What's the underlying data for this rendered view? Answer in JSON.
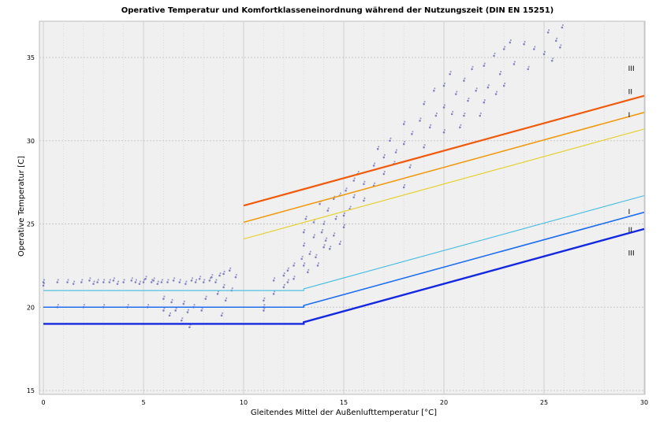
{
  "chart_data": {
    "type": "scatter",
    "title": "Operative Temperatur und Komfortklasseneinordnung während der Nutzungszeit (DIN EN 15251)",
    "xlabel": "Gleitendes Mittel der Außenlufttemperatur [°C]",
    "ylabel": "Operative Temperatur [C]",
    "xlim": [
      0,
      30
    ],
    "ylim": [
      15,
      37
    ],
    "xticks": [
      "0",
      "5",
      "10",
      "15",
      "20",
      "25",
      "30"
    ],
    "yticks": [
      "15",
      "20",
      "25",
      "30",
      "35"
    ],
    "grid": true,
    "lines": [
      {
        "name": "Upper III",
        "label": "III",
        "color": "#f05a0a",
        "width": 2.2,
        "points": [
          [
            10,
            26.1
          ],
          [
            30,
            32.7
          ]
        ]
      },
      {
        "name": "Upper II",
        "label": "II",
        "color": "#f09a10",
        "width": 1.6,
        "points": [
          [
            10,
            25.1
          ],
          [
            30,
            31.7
          ]
        ]
      },
      {
        "name": "Upper I",
        "label": "I",
        "color": "#e6d030",
        "width": 1.2,
        "points": [
          [
            10,
            24.1
          ],
          [
            30,
            30.7
          ]
        ]
      },
      {
        "name": "Lower I",
        "label": "I",
        "color": "#50c0e0",
        "width": 1.2,
        "points": [
          [
            0,
            21
          ],
          [
            13,
            21
          ],
          [
            13,
            21.1
          ],
          [
            30,
            26.7
          ]
        ]
      },
      {
        "name": "Lower II",
        "label": "II",
        "color": "#1e6ef0",
        "width": 1.6,
        "points": [
          [
            0,
            20
          ],
          [
            13,
            20
          ],
          [
            13,
            20.1
          ],
          [
            30,
            25.7
          ]
        ]
      },
      {
        "name": "Lower III",
        "label": "III",
        "color": "#1428e0",
        "width": 2.4,
        "points": [
          [
            0,
            19
          ],
          [
            13,
            19
          ],
          [
            13,
            19.1
          ],
          [
            30,
            24.7
          ]
        ]
      }
    ],
    "class_labels": [
      {
        "text": "III",
        "x": 29.2,
        "y": 34.2
      },
      {
        "text": "II",
        "x": 29.2,
        "y": 32.8
      },
      {
        "text": "I",
        "x": 29.2,
        "y": 31.4
      },
      {
        "text": "I",
        "x": 29.2,
        "y": 25.6
      },
      {
        "text": "II",
        "x": 29.2,
        "y": 24.5
      },
      {
        "text": "III",
        "x": 29.2,
        "y": 23.1
      }
    ],
    "series": [
      {
        "name": "Operative Temperatur",
        "color": "#3a3aa0",
        "points": [
          [
            0,
            21.5
          ],
          [
            0,
            21.3
          ],
          [
            0.7,
            21.5
          ],
          [
            0.7,
            20
          ],
          [
            1.2,
            21.5
          ],
          [
            1.5,
            21.4
          ],
          [
            1.9,
            21.5
          ],
          [
            2,
            20
          ],
          [
            2.3,
            21.6
          ],
          [
            2.5,
            21.4
          ],
          [
            2.7,
            21.5
          ],
          [
            3,
            21.5
          ],
          [
            3,
            20
          ],
          [
            3.3,
            21.5
          ],
          [
            3.5,
            21.6
          ],
          [
            3.7,
            21.4
          ],
          [
            4,
            21.5
          ],
          [
            4.2,
            20
          ],
          [
            4.4,
            21.6
          ],
          [
            4.6,
            21.5
          ],
          [
            4.8,
            21.4
          ],
          [
            5,
            21.5
          ],
          [
            5.1,
            21.7
          ],
          [
            5.2,
            20
          ],
          [
            5.4,
            21.5
          ],
          [
            5.5,
            21.6
          ],
          [
            5.7,
            21.4
          ],
          [
            5.9,
            21.5
          ],
          [
            6,
            19.8
          ],
          [
            6,
            20.5
          ],
          [
            6.2,
            21.5
          ],
          [
            6.3,
            19.5
          ],
          [
            6.4,
            20.3
          ],
          [
            6.5,
            21.6
          ],
          [
            6.6,
            19.8
          ],
          [
            6.8,
            21.5
          ],
          [
            6.9,
            19.2
          ],
          [
            7,
            20.2
          ],
          [
            7.1,
            21.4
          ],
          [
            7.2,
            19.7
          ],
          [
            7.3,
            18.8
          ],
          [
            7.4,
            21.6
          ],
          [
            7.5,
            20
          ],
          [
            7.6,
            21.5
          ],
          [
            7.8,
            21.7
          ],
          [
            7.9,
            19.8
          ],
          [
            8,
            21.5
          ],
          [
            8.1,
            20.5
          ],
          [
            8.3,
            21.6
          ],
          [
            8.4,
            21.8
          ],
          [
            8.6,
            21.5
          ],
          [
            8.7,
            20.8
          ],
          [
            8.8,
            21.9
          ],
          [
            8.9,
            19.5
          ],
          [
            9,
            22
          ],
          [
            9,
            21.2
          ],
          [
            9.1,
            20.4
          ],
          [
            9.3,
            22.2
          ],
          [
            9.4,
            21
          ],
          [
            9.6,
            21.8
          ],
          [
            11,
            20.4
          ],
          [
            11,
            20
          ],
          [
            11,
            19.8
          ],
          [
            11.5,
            21.6
          ],
          [
            11.5,
            20.8
          ],
          [
            12,
            21.9
          ],
          [
            12,
            21.2
          ],
          [
            12.2,
            22.2
          ],
          [
            12.2,
            21.5
          ],
          [
            12.5,
            22.5
          ],
          [
            12.5,
            21.7
          ],
          [
            12.9,
            22.9
          ],
          [
            13,
            23.7
          ],
          [
            13,
            22.5
          ],
          [
            13,
            24.5
          ],
          [
            13.1,
            25.3
          ],
          [
            13.2,
            22.1
          ],
          [
            13.3,
            23.2
          ],
          [
            13.5,
            24.2
          ],
          [
            13.5,
            25.1
          ],
          [
            13.6,
            23
          ],
          [
            13.7,
            22.5
          ],
          [
            13.8,
            26.2
          ],
          [
            13.9,
            24.5
          ],
          [
            14,
            25
          ],
          [
            14,
            23.6
          ],
          [
            14.1,
            24
          ],
          [
            14.2,
            25.8
          ],
          [
            14.3,
            23.5
          ],
          [
            14.5,
            26.5
          ],
          [
            14.5,
            24.3
          ],
          [
            14.6,
            25.3
          ],
          [
            14.8,
            26.7
          ],
          [
            14.8,
            23.8
          ],
          [
            15,
            25.5
          ],
          [
            15,
            24.8
          ],
          [
            15.1,
            27
          ],
          [
            15.3,
            25.9
          ],
          [
            15.5,
            27.6
          ],
          [
            15.5,
            26.6
          ],
          [
            15.7,
            28
          ],
          [
            16,
            26.4
          ],
          [
            16,
            27.4
          ],
          [
            16.5,
            27.3
          ],
          [
            16.5,
            28.5
          ],
          [
            16.7,
            29.5
          ],
          [
            17,
            28
          ],
          [
            17,
            29
          ],
          [
            17.3,
            30
          ],
          [
            17.5,
            28.6
          ],
          [
            17.6,
            29.3
          ],
          [
            18,
            27.2
          ],
          [
            18,
            29.8
          ],
          [
            18,
            31
          ],
          [
            18.3,
            28.4
          ],
          [
            18.4,
            30.4
          ],
          [
            18.8,
            31.2
          ],
          [
            19,
            29.6
          ],
          [
            19,
            32.2
          ],
          [
            19.3,
            30.8
          ],
          [
            19.5,
            33
          ],
          [
            19.6,
            31.5
          ],
          [
            20,
            30.5
          ],
          [
            20,
            32
          ],
          [
            20,
            33.3
          ],
          [
            20.3,
            34
          ],
          [
            20.4,
            31.6
          ],
          [
            20.6,
            32.8
          ],
          [
            20.8,
            30.8
          ],
          [
            21,
            33.6
          ],
          [
            21,
            31.5
          ],
          [
            21.2,
            32.4
          ],
          [
            21.4,
            34.3
          ],
          [
            21.6,
            33
          ],
          [
            21.8,
            31.5
          ],
          [
            22,
            32.3
          ],
          [
            22,
            34.5
          ],
          [
            22.2,
            33.2
          ],
          [
            22.5,
            35.1
          ],
          [
            22.6,
            32.8
          ],
          [
            22.8,
            34
          ],
          [
            23,
            35.5
          ],
          [
            23,
            33.3
          ],
          [
            23.3,
            35.9
          ],
          [
            23.5,
            34.6
          ],
          [
            24,
            35.8
          ],
          [
            24.2,
            34.3
          ],
          [
            24.5,
            35.5
          ],
          [
            25,
            35.2
          ],
          [
            25.2,
            36.5
          ],
          [
            25.4,
            34.8
          ],
          [
            25.6,
            36
          ],
          [
            25.8,
            35.6
          ],
          [
            25.9,
            36.8
          ]
        ]
      }
    ]
  }
}
